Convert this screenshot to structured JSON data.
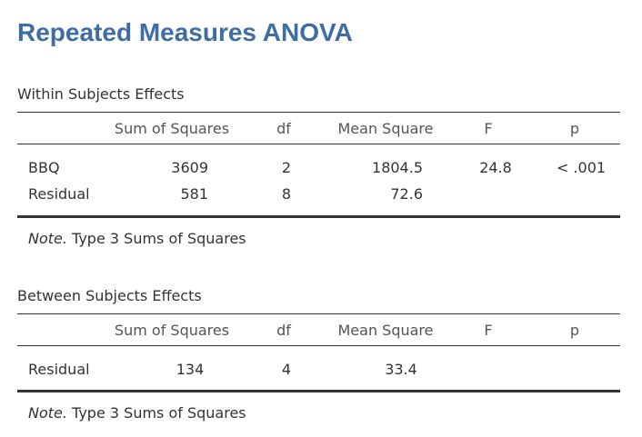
{
  "title": "Repeated Measures ANOVA",
  "columns": [
    "Sum of Squares",
    "df",
    "Mean Square",
    "F",
    "p"
  ],
  "within": {
    "caption": "Within Subjects Effects",
    "rows": [
      {
        "term": "BBQ",
        "ss": "3609",
        "df": "2",
        "ms": "1804.5",
        "f": "24.8",
        "p": "< .001"
      },
      {
        "term": "Residual",
        "ss": "581",
        "df": "8",
        "ms": "72.6",
        "f": "",
        "p": ""
      }
    ],
    "note_label": "Note.",
    "note_text": " Type 3 Sums of Squares"
  },
  "between": {
    "caption": "Between Subjects Effects",
    "rows": [
      {
        "term": "Residual",
        "ss": "134",
        "df": "4",
        "ms": "33.4",
        "f": "",
        "p": ""
      }
    ],
    "note_label": "Note.",
    "note_text": " Type 3 Sums of Squares"
  }
}
